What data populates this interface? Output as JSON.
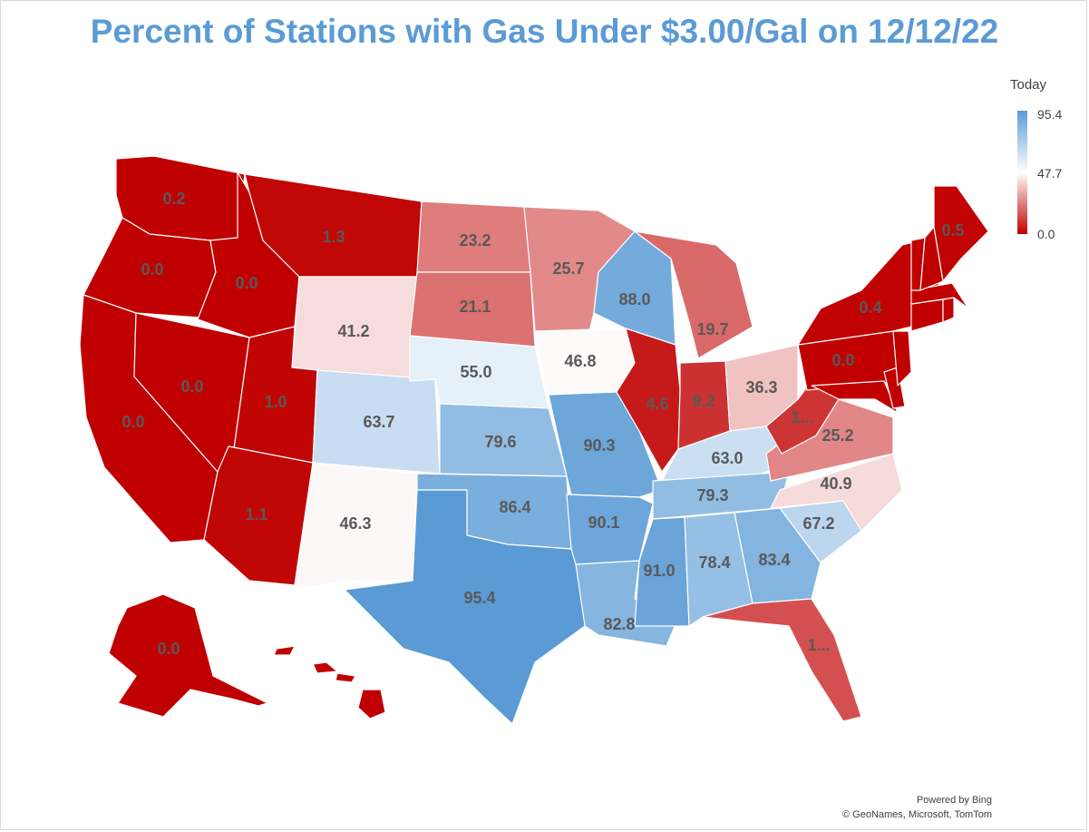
{
  "title": "Percent of Stations with Gas Under $3.00/Gal on 12/12/22",
  "legend": {
    "title": "Today",
    "max_label": "95.4",
    "mid_label": "47.7",
    "min_label": "0.0",
    "max": 95.4,
    "min": 0.0,
    "color_max": "#5b9bd5",
    "color_mid": "#ffffff",
    "color_min": "#c00000"
  },
  "credits": {
    "line1": "Powered by Bing",
    "line2": "© GeoNames, Microsoft, TomTom"
  },
  "states": [
    {
      "id": "WA",
      "label": "0.2",
      "value": 0.2
    },
    {
      "id": "OR",
      "label": "0.0",
      "value": 0.0
    },
    {
      "id": "CA",
      "label": "0.0",
      "value": 0.0
    },
    {
      "id": "NV",
      "label": "0.0",
      "value": 0.0
    },
    {
      "id": "ID",
      "label": "0.0",
      "value": 0.0
    },
    {
      "id": "MT",
      "label": "1.3",
      "value": 1.3
    },
    {
      "id": "WY",
      "label": "41.2",
      "value": 41.2
    },
    {
      "id": "UT",
      "label": "1.0",
      "value": 1.0
    },
    {
      "id": "AZ",
      "label": "1.1",
      "value": 1.1
    },
    {
      "id": "CO",
      "label": "63.7",
      "value": 63.7
    },
    {
      "id": "NM",
      "label": "46.3",
      "value": 46.3
    },
    {
      "id": "ND",
      "label": "23.2",
      "value": 23.2
    },
    {
      "id": "SD",
      "label": "21.1",
      "value": 21.1
    },
    {
      "id": "NE",
      "label": "55.0",
      "value": 55.0
    },
    {
      "id": "KS",
      "label": "79.6",
      "value": 79.6
    },
    {
      "id": "OK",
      "label": "86.4",
      "value": 86.4
    },
    {
      "id": "TX",
      "label": "95.4",
      "value": 95.4
    },
    {
      "id": "MN",
      "label": "25.7",
      "value": 25.7
    },
    {
      "id": "IA",
      "label": "46.8",
      "value": 46.8
    },
    {
      "id": "MO",
      "label": "90.3",
      "value": 90.3
    },
    {
      "id": "AR",
      "label": "90.1",
      "value": 90.1
    },
    {
      "id": "LA",
      "label": "82.8",
      "value": 82.8
    },
    {
      "id": "WI",
      "label": "88.0",
      "value": 88.0
    },
    {
      "id": "IL",
      "label": "4.6",
      "value": 4.6
    },
    {
      "id": "MI",
      "label": "19.7",
      "value": 19.7
    },
    {
      "id": "IN",
      "label": "9.2",
      "value": 9.2
    },
    {
      "id": "OH",
      "label": "36.3",
      "value": 36.3
    },
    {
      "id": "KY",
      "label": "63.0",
      "value": 63.0
    },
    {
      "id": "TN",
      "label": "79.3",
      "value": 79.3
    },
    {
      "id": "MS",
      "label": "91.0",
      "value": 91.0
    },
    {
      "id": "AL",
      "label": "78.4",
      "value": 78.4
    },
    {
      "id": "GA",
      "label": "83.4",
      "value": 83.4
    },
    {
      "id": "FL",
      "label": "1...",
      "value": 15
    },
    {
      "id": "SC",
      "label": "67.2",
      "value": 67.2
    },
    {
      "id": "NC",
      "label": "40.9",
      "value": 40.9
    },
    {
      "id": "VA",
      "label": "25.2",
      "value": 25.2
    },
    {
      "id": "WV",
      "label": "1...",
      "value": 10
    },
    {
      "id": "PA",
      "label": "0.0",
      "value": 0.0
    },
    {
      "id": "NY",
      "label": "0.4",
      "value": 0.4
    },
    {
      "id": "ME",
      "label": "0.5",
      "value": 0.5
    },
    {
      "id": "VT",
      "label": "",
      "value": 0.0
    },
    {
      "id": "NH",
      "label": "",
      "value": 0.0
    },
    {
      "id": "MA",
      "label": "",
      "value": 0.0
    },
    {
      "id": "CT",
      "label": "",
      "value": 0.0
    },
    {
      "id": "RI",
      "label": "",
      "value": 0.0
    },
    {
      "id": "NJ",
      "label": "",
      "value": 0.0
    },
    {
      "id": "DE",
      "label": "",
      "value": 0.0
    },
    {
      "id": "MD",
      "label": "",
      "value": 0.0
    },
    {
      "id": "AK",
      "label": "0.0",
      "value": 0.0
    },
    {
      "id": "HI",
      "label": "",
      "value": 0.0
    }
  ]
}
